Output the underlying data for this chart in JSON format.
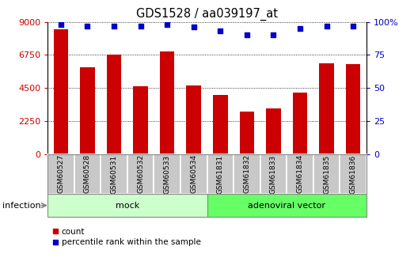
{
  "title": "GDS1528 / aa039197_at",
  "categories": [
    "GSM60527",
    "GSM60528",
    "GSM60531",
    "GSM60532",
    "GSM60533",
    "GSM60534",
    "GSM61831",
    "GSM61832",
    "GSM61833",
    "GSM61834",
    "GSM61835",
    "GSM61836"
  ],
  "counts": [
    8500,
    5900,
    6800,
    4600,
    7000,
    4700,
    4050,
    2900,
    3100,
    4200,
    6200,
    6150
  ],
  "percentiles": [
    98,
    97,
    97,
    97,
    98,
    96,
    93,
    90,
    90,
    95,
    97,
    97
  ],
  "group_labels": [
    "mock",
    "adenoviral vector"
  ],
  "bar_color": "#cc0000",
  "dot_color": "#0000cc",
  "ylim_left": [
    0,
    9000
  ],
  "ylim_right": [
    0,
    100
  ],
  "yticks_left": [
    0,
    2250,
    4500,
    6750,
    9000
  ],
  "yticks_right": [
    0,
    25,
    50,
    75,
    100
  ],
  "left_tick_color": "#cc0000",
  "right_tick_color": "#0000cc",
  "tick_label_bg": "#c8c8c8",
  "mock_color": "#ccffcc",
  "adeno_color": "#66ff66",
  "infection_label": "infection",
  "legend_count_label": "count",
  "legend_percentile_label": "percentile rank within the sample",
  "figsize": [
    5.23,
    3.45
  ],
  "dpi": 100
}
